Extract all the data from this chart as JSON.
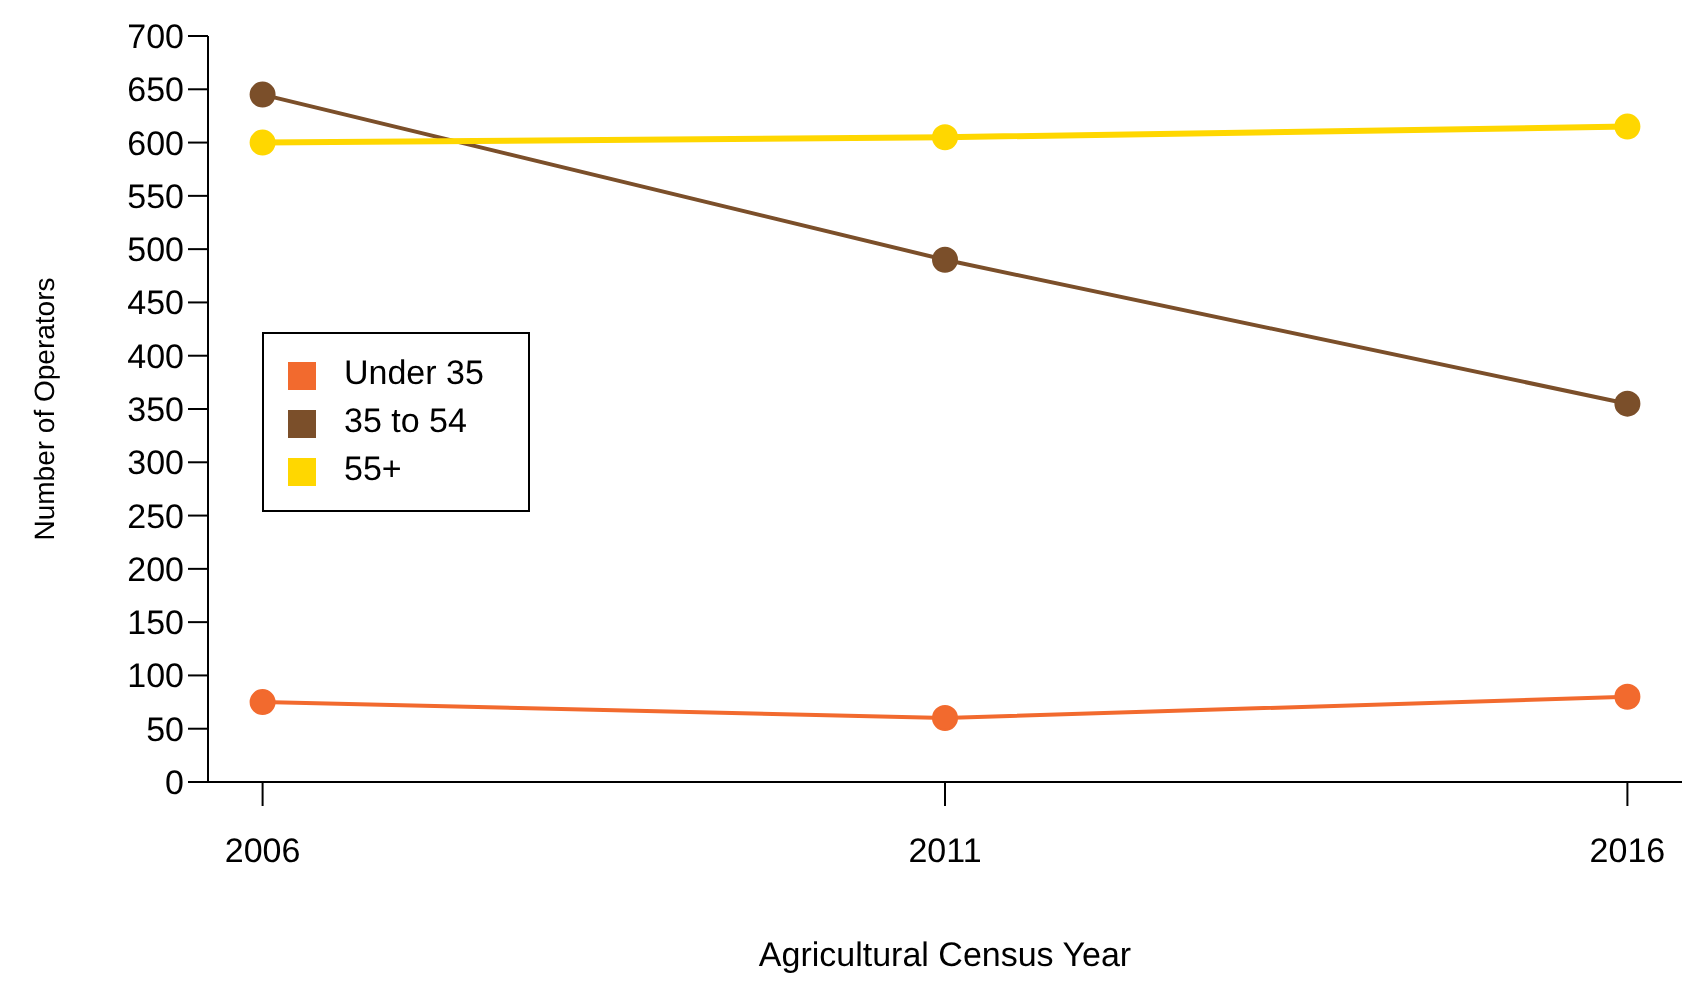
{
  "chart_data": {
    "type": "line",
    "xlabel": "Agricultural Census Year",
    "ylabel": "Number of Operators",
    "x": [
      2006,
      2011,
      2016
    ],
    "xlim": [
      2005.6,
      2016.4
    ],
    "xticks": [
      2006,
      2011,
      2016
    ],
    "ylim": [
      0,
      700
    ],
    "yticks": [
      0,
      50,
      100,
      150,
      200,
      250,
      300,
      350,
      400,
      450,
      500,
      550,
      600,
      650,
      700
    ],
    "series": [
      {
        "name": "Under 35",
        "color": "#f26a2e",
        "values": [
          75,
          60,
          80
        ]
      },
      {
        "name": "35 to 54",
        "color": "#7b4f2a",
        "values": [
          645,
          490,
          355
        ]
      },
      {
        "name": "55+",
        "color": "#ffd700",
        "values": [
          600,
          605,
          615
        ]
      }
    ],
    "marker": "circle",
    "legend": "left",
    "grid": false
  }
}
